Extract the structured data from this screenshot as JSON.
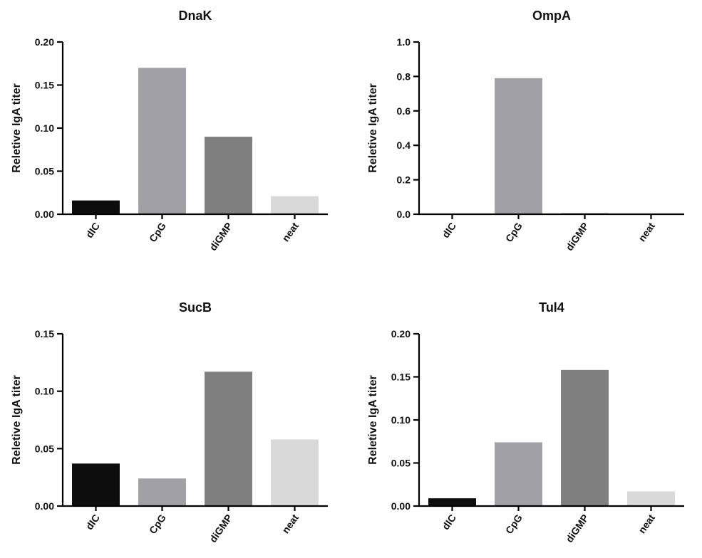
{
  "chart_data": [
    {
      "type": "bar",
      "title": "DnaK",
      "ylabel": "Reletive IgA  titer",
      "categories": [
        "dIC",
        "CpG",
        "diGMP",
        "neat"
      ],
      "values": [
        0.016,
        0.17,
        0.09,
        0.021
      ],
      "ylim": [
        0,
        0.2
      ],
      "yticks": [
        "0.00",
        "0.05",
        "0.10",
        "0.15",
        "0.20"
      ],
      "bar_colors": [
        "#0d0d0d",
        "#a0a0a6",
        "#7f7f7f",
        "#d9d9d9"
      ],
      "grid": false
    },
    {
      "type": "bar",
      "title": "OmpA",
      "ylabel": "Reletive IgA  titer",
      "categories": [
        "dIC",
        "CpG",
        "diGMP",
        "neat"
      ],
      "values": [
        0.003,
        0.79,
        0.006,
        0.002
      ],
      "ylim": [
        0,
        1.0
      ],
      "yticks": [
        "0.0",
        "0.2",
        "0.4",
        "0.6",
        "0.8",
        "1.0"
      ],
      "bar_colors": [
        "#0d0d0d",
        "#a0a0a6",
        "#7f7f7f",
        "#d9d9d9"
      ],
      "grid": false
    },
    {
      "type": "bar",
      "title": "SucB",
      "ylabel": "Reletive IgA  titer",
      "categories": [
        "dIC",
        "CpG",
        "diGMP",
        "neat"
      ],
      "values": [
        0.037,
        0.024,
        0.117,
        0.058
      ],
      "ylim": [
        0,
        0.15
      ],
      "yticks": [
        "0.00",
        "0.05",
        "0.10",
        "0.15"
      ],
      "bar_colors": [
        "#0d0d0d",
        "#a0a0a6",
        "#7f7f7f",
        "#d9d9d9"
      ],
      "grid": false
    },
    {
      "type": "bar",
      "title": "Tul4",
      "ylabel": "Reletive IgA  titer",
      "categories": [
        "dIC",
        "CpG",
        "diGMP",
        "neat"
      ],
      "values": [
        0.009,
        0.074,
        0.158,
        0.017
      ],
      "ylim": [
        0,
        0.2
      ],
      "yticks": [
        "0.00",
        "0.05",
        "0.10",
        "0.15",
        "0.20"
      ],
      "bar_colors": [
        "#0d0d0d",
        "#a0a0a6",
        "#7f7f7f",
        "#d9d9d9"
      ],
      "grid": false
    }
  ]
}
